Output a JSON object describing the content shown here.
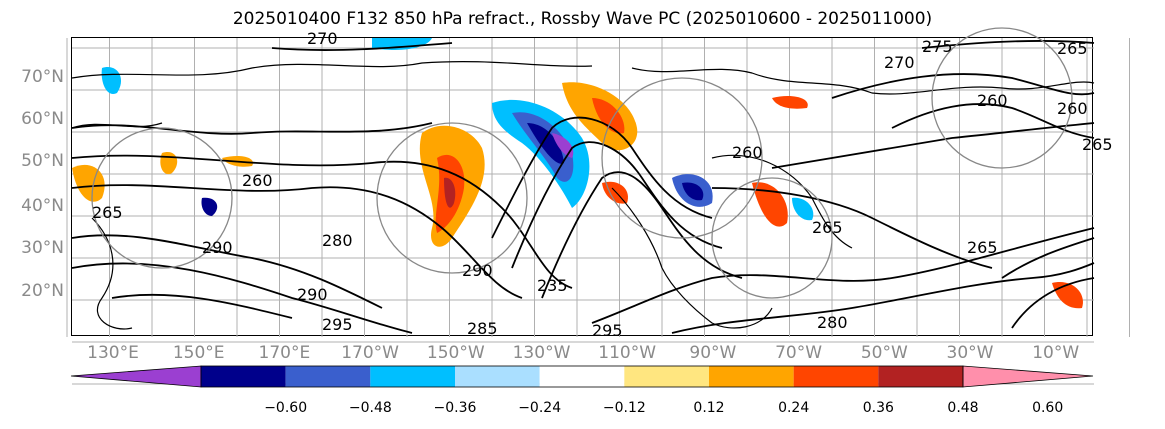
{
  "figure": {
    "title": "2025010400 F132 850 hPa refract., Rossby Wave PC (2025010600 - 2025011000)"
  },
  "axes": {
    "lat_labels": [
      "70°N",
      "60°N",
      "50°N",
      "40°N",
      "30°N",
      "20°N"
    ],
    "lon_labels": [
      "130°E",
      "150°E",
      "170°E",
      "170°W",
      "150°W",
      "130°W",
      "110°W",
      "90°W",
      "70°W",
      "50°W",
      "30°W",
      "10°W"
    ],
    "lat_range": [
      10,
      80
    ],
    "gridlines": true
  },
  "contour_labels": [
    "270",
    "275",
    "265",
    "270",
    "260",
    "260",
    "260",
    "265",
    "260",
    "265",
    "265",
    "265",
    "290",
    "280",
    "290",
    "295",
    "290",
    "285",
    "235",
    "295",
    "280"
  ],
  "colorbar": {
    "tick_labels": [
      "−0.60",
      "−0.48",
      "−0.36",
      "−0.24",
      "−0.12",
      "0.12",
      "0.24",
      "0.36",
      "0.48",
      "0.60"
    ],
    "levels": [
      -0.6,
      -0.48,
      -0.36,
      -0.24,
      -0.12,
      0.12,
      0.24,
      0.36,
      0.48,
      0.6
    ],
    "colors": [
      "#9b3fd1",
      "#00008b",
      "#3a5fcd",
      "#00bfff",
      "#aadfff",
      "#ffffff",
      "#ffe680",
      "#ffa500",
      "#ff4500",
      "#b22222",
      "#ff8fab"
    ],
    "extend": "both",
    "orientation": "horizontal"
  }
}
